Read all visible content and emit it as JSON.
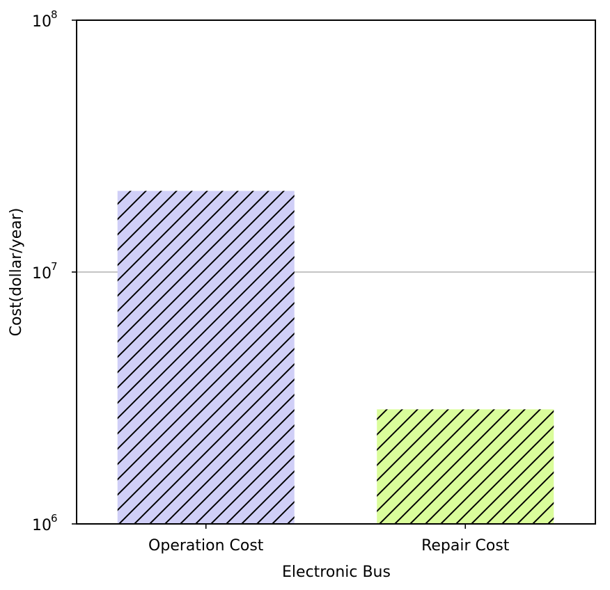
{
  "chart_data": {
    "type": "bar",
    "title": "",
    "xlabel": "Electronic Bus",
    "ylabel": "Cost(dollar/year)",
    "yscale": "log",
    "ylim": [
      1000000,
      100000000
    ],
    "yticks": [
      {
        "value": 1000000,
        "base": "10",
        "exp": "6"
      },
      {
        "value": 10000000,
        "base": "10",
        "exp": "7"
      },
      {
        "value": 100000000,
        "base": "10",
        "exp": "8"
      }
    ],
    "categories": [
      "Operation Cost",
      "Repair Cost"
    ],
    "values": [
      21000000,
      2850000
    ],
    "colors": [
      "#d0cff7",
      "#dafd9b"
    ],
    "hatch": "diagonal",
    "grid": "horizontal line at 10^7",
    "grid_color": "#b0b0b0",
    "legend": "none"
  }
}
